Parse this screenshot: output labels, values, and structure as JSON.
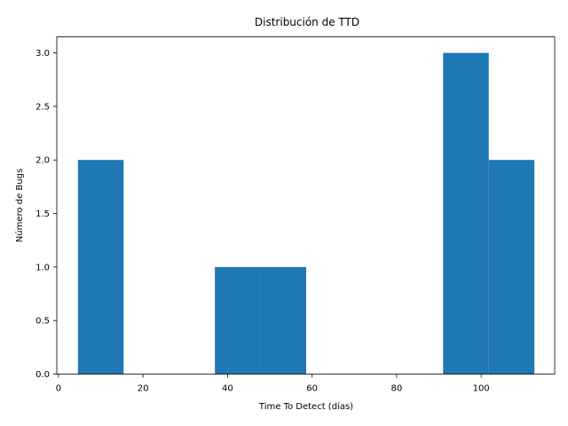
{
  "chart_data": {
    "type": "bar",
    "title": "Distribución de TTD",
    "xlabel": "Time To Detect (días)",
    "ylabel": "Número de Bugs",
    "bar_color": "#1f77b4",
    "xlim": [
      -0.4,
      117.4
    ],
    "ylim": [
      0,
      3.15
    ],
    "xticks": [
      0,
      20,
      40,
      60,
      80,
      100
    ],
    "yticks": [
      0.0,
      0.5,
      1.0,
      1.5,
      2.0,
      2.5,
      3.0
    ],
    "xtick_labels": [
      "0",
      "20",
      "40",
      "60",
      "80",
      "100"
    ],
    "ytick_labels": [
      "0.0",
      "0.5",
      "1.0",
      "1.5",
      "2.0",
      "2.5",
      "3.0"
    ],
    "bins": [
      4.6,
      15.4,
      26.2,
      37.0,
      47.8,
      58.6,
      69.4,
      80.2,
      91.0,
      101.8,
      112.6
    ],
    "counts": [
      2,
      0,
      0,
      1,
      1,
      0,
      0,
      0,
      3,
      2
    ],
    "grid": false
  }
}
